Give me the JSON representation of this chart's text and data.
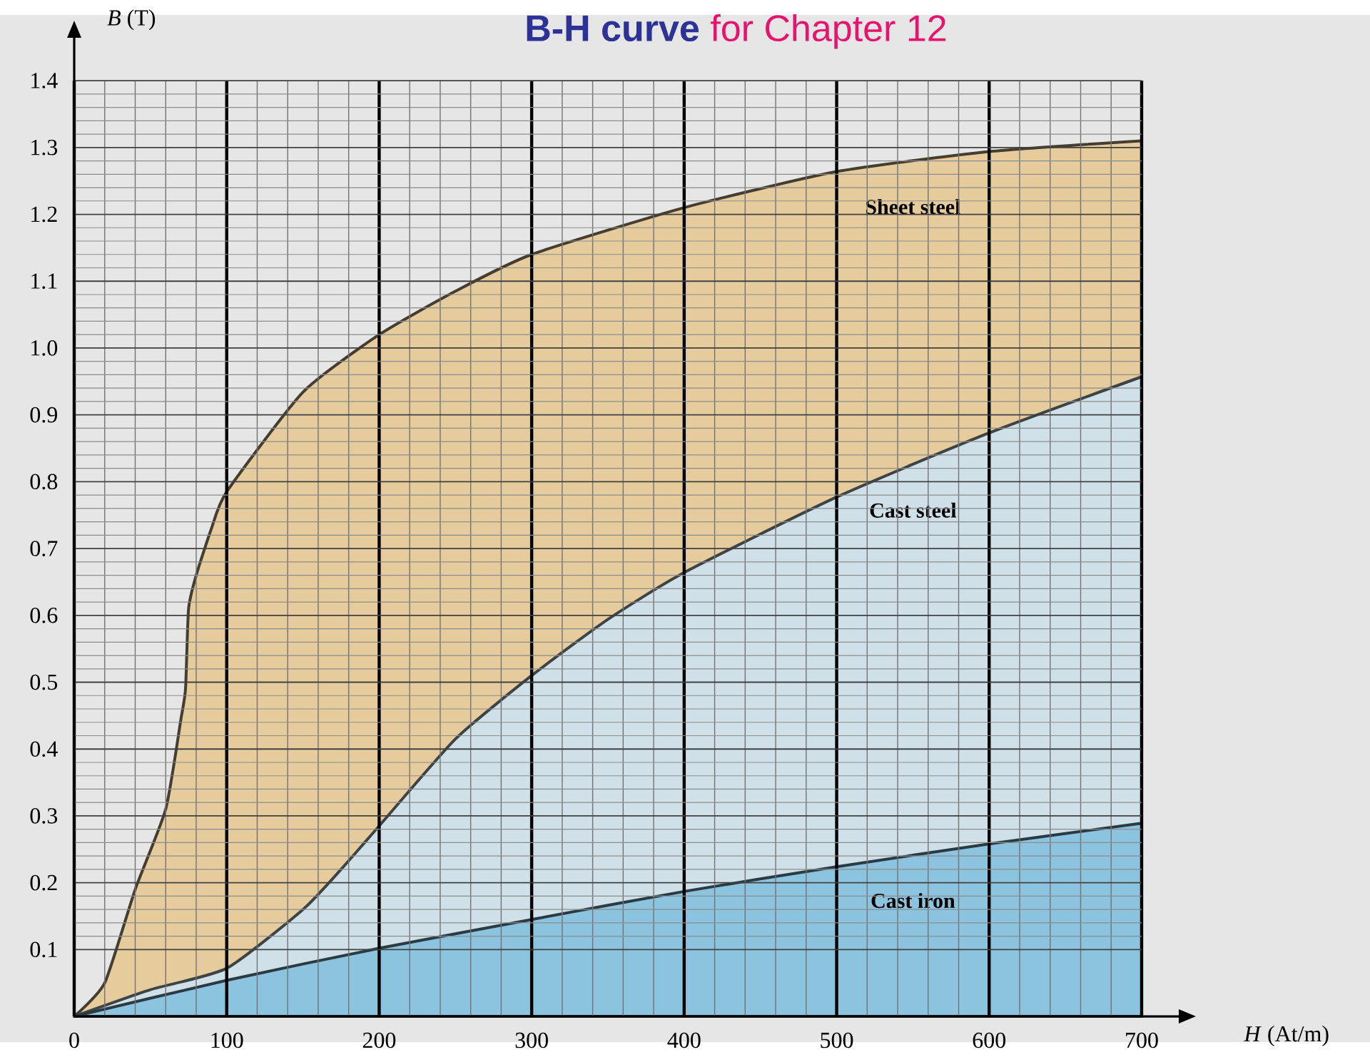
{
  "chart_data": {
    "type": "area",
    "title": "**B-H curve** for Chapter 12",
    "xlabel": "*H* (At/m)",
    "ylabel": "*B* (T)",
    "xlim": [
      0,
      700
    ],
    "ylim": [
      0,
      1.4
    ],
    "xticks": [
      0,
      100,
      200,
      300,
      400,
      500,
      600,
      700
    ],
    "yticks": [
      0.1,
      0.2,
      0.3,
      0.4,
      0.5,
      0.6,
      0.7,
      0.8,
      0.9,
      {
        "value": 1.0,
        "label": "1.0"
      },
      1.1,
      1.2,
      1.3,
      1.4
    ],
    "grid": true,
    "legend": false,
    "series": [
      {
        "name": "Sheet steel",
        "color": "#e6cc9c",
        "x": [
          0,
          20,
          40,
          60,
          70,
          73,
          75,
          80,
          90,
          100,
          150,
          200,
          250,
          300,
          400,
          500,
          600,
          700
        ],
        "values": [
          0,
          0.05,
          0.19,
          0.31,
          0.445,
          0.49,
          0.61,
          0.66,
          0.73,
          0.785,
          0.934,
          1.02,
          1.085,
          1.14,
          1.21,
          1.264,
          1.294,
          1.31
        ]
      },
      {
        "name": "Cast steel",
        "color": "#cfe0e8",
        "x": [
          0,
          50,
          100,
          150,
          175,
          200,
          250,
          300,
          350,
          400,
          500,
          600,
          700
        ],
        "values": [
          0,
          0.04,
          0.072,
          0.16,
          0.22,
          0.285,
          0.415,
          0.51,
          0.594,
          0.664,
          0.777,
          0.873,
          0.957
        ]
      },
      {
        "name": "Cast iron",
        "color": "#8cc4e0",
        "x": [
          0,
          100,
          200,
          300,
          400,
          500,
          600,
          700
        ],
        "values": [
          0,
          0.054,
          0.102,
          0.145,
          0.187,
          0.224,
          0.258,
          0.289
        ]
      }
    ]
  }
}
